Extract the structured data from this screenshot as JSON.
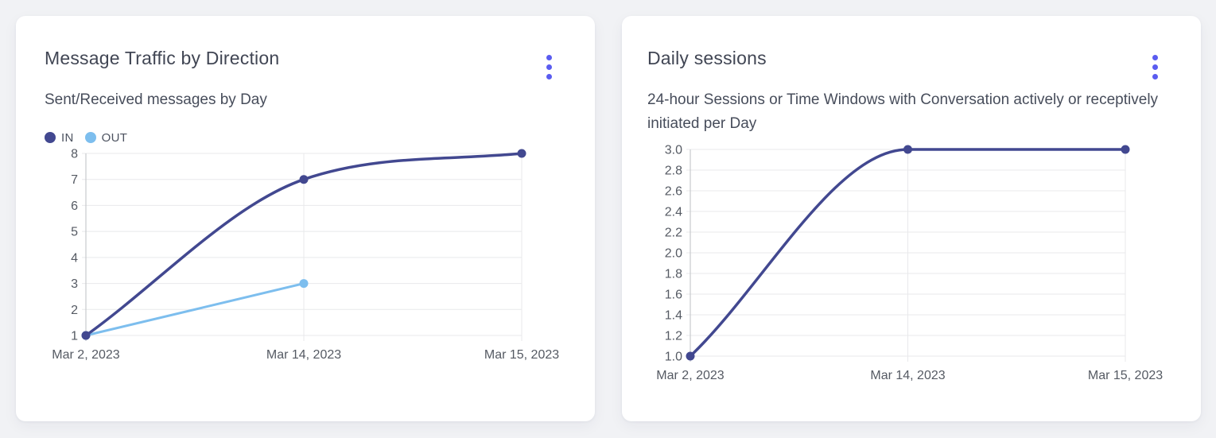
{
  "colors": {
    "page_bg": "#f1f2f5",
    "card_bg": "#ffffff",
    "accent_menu": "#5a5cf0",
    "grid_line": "#e8e9eb",
    "axis_line": "#c8cacd",
    "title_text": "#414654",
    "subtitle_text": "#474d5b",
    "tick_text": "#555a63",
    "series_in": "#424890",
    "series_out": "#7dbeee"
  },
  "cards": [
    {
      "menu_icon": "kebab-menu-icon"
    },
    {
      "menu_icon": "kebab-menu-icon"
    }
  ],
  "chart_data": [
    {
      "type": "line",
      "title": "Message Traffic by Direction",
      "subtitle": "Sent/Received messages by Day",
      "categories": [
        "Mar 2, 2023",
        "Mar 14, 2023",
        "Mar 15, 2023"
      ],
      "series": [
        {
          "name": "IN",
          "color": "#424890",
          "values": [
            1,
            7,
            8
          ],
          "line_width": 3.5
        },
        {
          "name": "OUT",
          "color": "#7dbeee",
          "values": [
            1,
            3,
            null
          ],
          "line_width": 3
        }
      ],
      "ylim": [
        1,
        8
      ],
      "yticks": [
        "1",
        "2",
        "3",
        "4",
        "5",
        "6",
        "7",
        "8"
      ],
      "xlabel": "",
      "ylabel": "",
      "grid": true,
      "smooth": true,
      "legend_position": "top-left"
    },
    {
      "type": "line",
      "title": "Daily sessions",
      "subtitle": "24-hour Sessions or Time Windows with Conversation actively or receptively initiated per Day",
      "categories": [
        "Mar 2, 2023",
        "Mar 14, 2023",
        "Mar 15, 2023"
      ],
      "series": [
        {
          "name": "Daily sessions",
          "color": "#424890",
          "values": [
            1.0,
            3.0,
            3.0
          ],
          "line_width": 3.5
        }
      ],
      "ylim": [
        1.0,
        3.0
      ],
      "yticks": [
        "1.0",
        "1.2",
        "1.4",
        "1.6",
        "1.8",
        "2.0",
        "2.2",
        "2.4",
        "2.6",
        "2.8",
        "3.0"
      ],
      "xlabel": "",
      "ylabel": "",
      "grid": true,
      "smooth": true,
      "legend_position": "none"
    }
  ]
}
